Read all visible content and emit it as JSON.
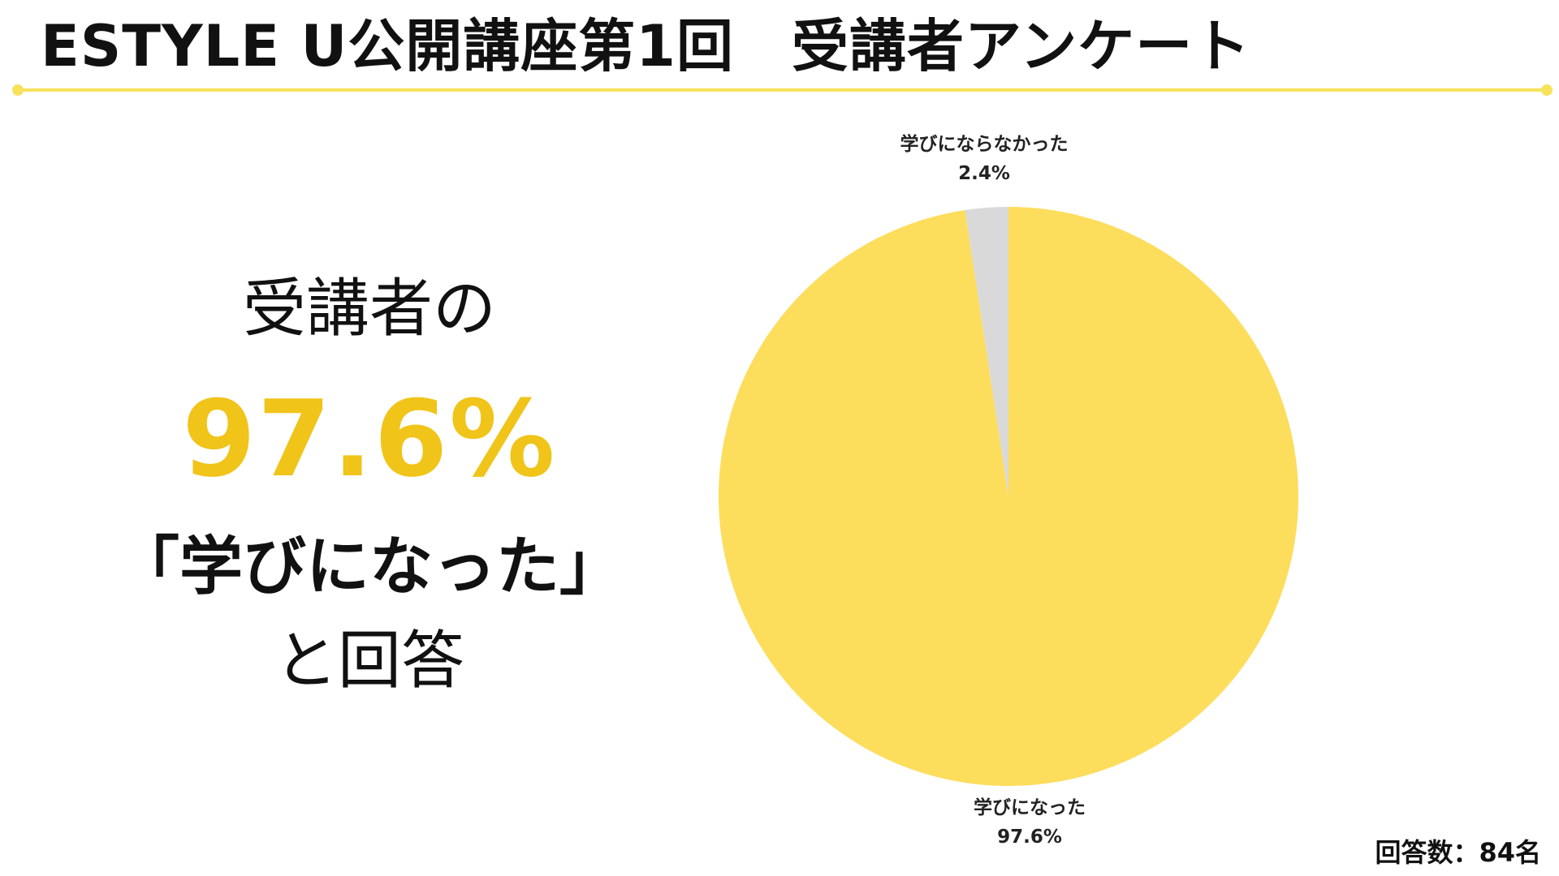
{
  "header": {
    "title": "ESTYLE U公開講座第1回　受講者アンケート",
    "accent_color": "#f7e25c"
  },
  "summary": {
    "line1": "受講者の",
    "percent": "97.6%",
    "quote": "「学びになった」",
    "line4": "と回答",
    "highlight_color": "#f0c419"
  },
  "chart_data": {
    "type": "pie",
    "title": "",
    "slices": [
      {
        "label": "学びになった",
        "value": 97.6,
        "display": "97.6%",
        "color": "#fddd5c"
      },
      {
        "label": "学びにならなかった",
        "value": 2.4,
        "display": "2.4%",
        "color": "#d9d9d9"
      }
    ],
    "start": "12 o'clock",
    "direction": "clockwise"
  },
  "footer": {
    "respondents": "回答数：84名"
  }
}
